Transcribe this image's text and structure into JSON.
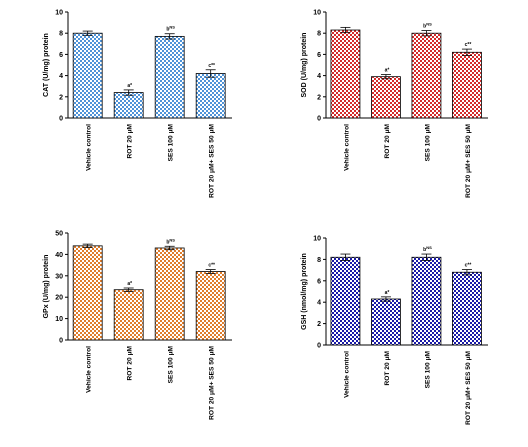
{
  "chart_data": [
    {
      "type": "bar",
      "ylabel": "CAT (U/mg) protein",
      "ylim": [
        0,
        10
      ],
      "yticks": [
        0,
        2,
        4,
        6,
        8,
        10
      ],
      "categories": [
        "Vehicle control",
        "ROT 20 μM",
        "SES 100 μM",
        "ROT 20 μM+ SES 50 μM"
      ],
      "values": [
        8.0,
        2.4,
        7.7,
        4.2
      ],
      "errors": [
        0.2,
        0.25,
        0.25,
        0.35
      ],
      "annotations": [
        "",
        "a*",
        "b^NS",
        "c**"
      ],
      "color": "#4f93d8",
      "pattern_light": "#ffffff"
    },
    {
      "type": "bar",
      "ylabel": "SOD (U/mg) protein",
      "ylim": [
        0,
        10
      ],
      "yticks": [
        0,
        2,
        4,
        6,
        8,
        10
      ],
      "categories": [
        "Vehicle control",
        "ROT 20 μM",
        "SES 100 μM",
        "ROT 20 μM+ SES 50 μM"
      ],
      "values": [
        8.3,
        3.9,
        8.0,
        6.2
      ],
      "errors": [
        0.25,
        0.2,
        0.25,
        0.3
      ],
      "annotations": [
        "",
        "a*",
        "b^NS",
        "c**"
      ],
      "color": "#d42b2b",
      "pattern_light": "#ffffff"
    },
    {
      "type": "bar",
      "ylabel": "GPx (U/mg) protein",
      "ylim": [
        0,
        50
      ],
      "yticks": [
        0,
        10,
        20,
        30,
        40,
        50
      ],
      "categories": [
        "Vehicle control",
        "ROT 20 μM",
        "SES 100 μM",
        "ROT 20 μM+ SES 50 μM"
      ],
      "values": [
        44,
        23.5,
        43,
        32
      ],
      "errors": [
        0.8,
        0.8,
        0.8,
        0.9
      ],
      "annotations": [
        "",
        "a*",
        "b^NS",
        "c**"
      ],
      "color": "#e07d2c",
      "pattern_light": "#ffffff"
    },
    {
      "type": "bar",
      "ylabel": "GSH (nmol/mg) protein",
      "ylim": [
        0,
        10
      ],
      "yticks": [
        0,
        2,
        4,
        6,
        8,
        10
      ],
      "categories": [
        "Vehicle control",
        "ROT 20 μM",
        "SES 100 μM",
        "ROT 20 μM+ SES 50 μM"
      ],
      "values": [
        8.2,
        4.3,
        8.2,
        6.8
      ],
      "errors": [
        0.3,
        0.2,
        0.3,
        0.25
      ],
      "annotations": [
        "",
        "a*",
        "b^NS",
        "c**"
      ],
      "color": "#1a1aa8",
      "pattern_light": "#ffffff"
    }
  ]
}
